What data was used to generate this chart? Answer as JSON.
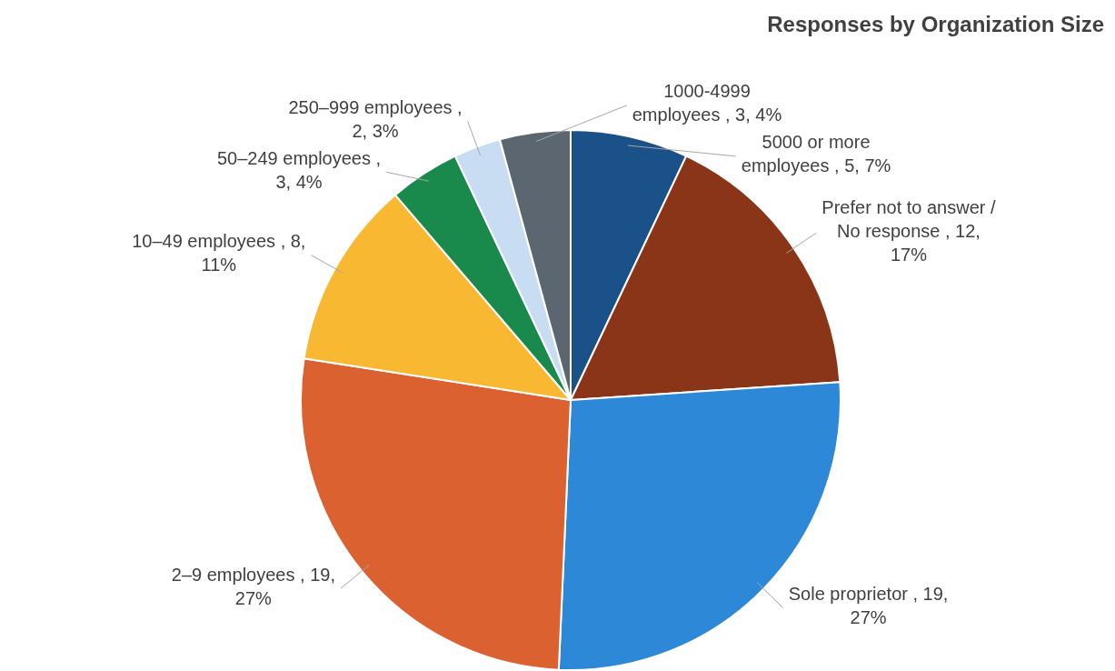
{
  "chart_data": {
    "type": "pie",
    "title": "Responses by Organization Size",
    "categories": [
      "5000 or more employees",
      "Prefer not to answer / No response",
      "Sole proprietor",
      "2–9 employees",
      "10–49 employees",
      "50–249 employees",
      "250–999 employees",
      "1000-4999 employees"
    ],
    "values": [
      5,
      12,
      19,
      19,
      8,
      3,
      2,
      3
    ],
    "value_labels": [
      ", 5, 7%",
      ", 12, 17%",
      ", 19, 27%",
      ", 19, 27%",
      ", 8, 11%",
      ", 3, 4%",
      ", 2, 3%",
      ", 3, 4%"
    ],
    "colors": [
      "#1a5189",
      "#8b3518",
      "#2e88d8",
      "#dc6130",
      "#f8b832",
      "#1a8a4c",
      "#c9ddf2",
      "#5c6670"
    ]
  }
}
